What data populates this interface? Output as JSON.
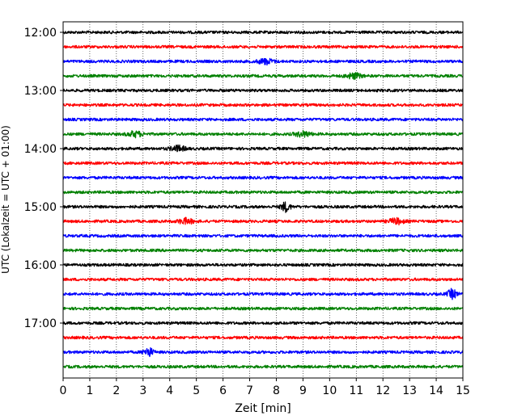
{
  "chart_data": {
    "type": "line",
    "title": "",
    "xlabel": "Zeit  [min]",
    "ylabel": "UTC (Lokalzeit = UTC + 01:00)",
    "xlim": [
      0,
      15
    ],
    "x_ticks": [
      0,
      1,
      2,
      3,
      4,
      5,
      6,
      7,
      8,
      9,
      10,
      11,
      12,
      13,
      14,
      15
    ],
    "x_tick_labels": [
      "0",
      "1",
      "2",
      "3",
      "4",
      "5",
      "6",
      "7",
      "8",
      "9",
      "10",
      "11",
      "12",
      "13",
      "14",
      "15"
    ],
    "y_tick_labels": [
      "12:00",
      "13:00",
      "14:00",
      "15:00",
      "16:00",
      "17:00"
    ],
    "grid_x": "dotted",
    "grid_y": false,
    "legend": "none",
    "trace_start": "12:00",
    "trace_interval_min": 15,
    "trace_count": 24,
    "trace_colors": [
      "#000000",
      "#ff0000",
      "#0000ff",
      "#008000"
    ],
    "events": [
      {
        "trace_start": "12:30",
        "x_min": 7.6,
        "note": "small bump"
      },
      {
        "trace_start": "12:45",
        "x_min": 10.9,
        "note": "small bump"
      },
      {
        "trace_start": "13:45",
        "x_min": 2.7,
        "note": "small bump"
      },
      {
        "trace_start": "13:45",
        "x_min": 9.0,
        "note": "small bump"
      },
      {
        "trace_start": "14:00",
        "x_min": 4.3,
        "note": "small bump"
      },
      {
        "trace_start": "15:00",
        "x_min": 8.35,
        "note": "spike"
      },
      {
        "trace_start": "15:15",
        "x_min": 12.5,
        "note": "small bump"
      },
      {
        "trace_start": "15:15",
        "x_min": 4.6,
        "note": "small bump"
      },
      {
        "trace_start": "16:30",
        "x_min": 14.6,
        "note": "spike"
      },
      {
        "trace_start": "17:30",
        "x_min": 3.2,
        "note": "spike"
      }
    ]
  }
}
